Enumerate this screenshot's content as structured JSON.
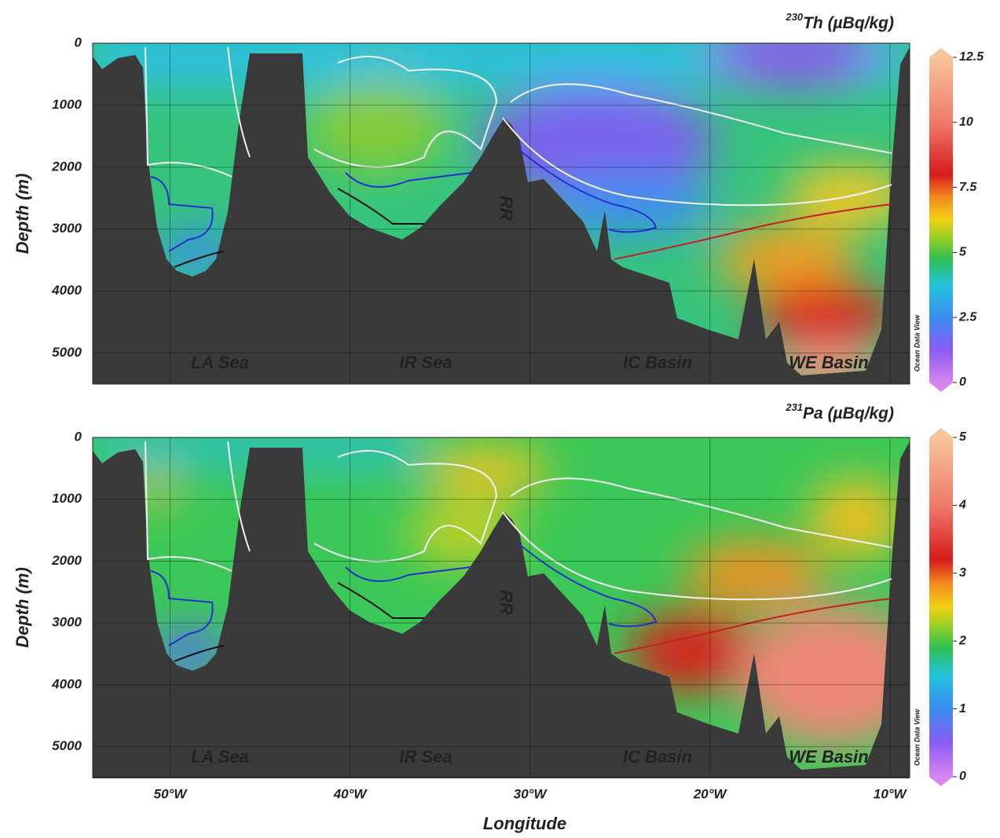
{
  "chart_data": [
    {
      "type": "section",
      "title_superscript": "230",
      "title": "Th (µBq/kg)",
      "ylabel": "Depth (m)",
      "ylim": [
        0,
        5500
      ],
      "yticks": [
        0,
        1000,
        2000,
        3000,
        4000,
        5000
      ],
      "xlim": [
        -54.3,
        -8.9
      ],
      "colorbar_lim": [
        0,
        12.5
      ],
      "colorbar_ticks": [
        0,
        2.5,
        5,
        7.5,
        10,
        12.5
      ],
      "colorbar_note": "Ocean Data View",
      "annotations": [
        "LA Sea",
        "IR Sea",
        "RR",
        "IC Basin",
        "WE Basin"
      ]
    },
    {
      "type": "section",
      "title_superscript": "231",
      "title": "Pa (µBq/kg)",
      "ylabel": "Depth (m)",
      "xlabel": "Longitude",
      "ylim": [
        0,
        5500
      ],
      "yticks": [
        0,
        1000,
        2000,
        3000,
        4000,
        5000
      ],
      "xlim": [
        -54.3,
        -8.9
      ],
      "xticks": [
        {
          "value": -50,
          "label": "50°W"
        },
        {
          "value": -40,
          "label": "40°W"
        },
        {
          "value": -30,
          "label": "30°W"
        },
        {
          "value": -20,
          "label": "20°W"
        },
        {
          "value": -10,
          "label": "10°W"
        }
      ],
      "colorbar_lim": [
        0,
        5
      ],
      "colorbar_ticks": [
        0,
        1,
        2,
        3,
        4,
        5
      ],
      "colorbar_note": "Ocean Data View",
      "annotations": [
        "LA Sea",
        "IR Sea",
        "RR",
        "IC Basin",
        "WE Basin"
      ]
    }
  ]
}
